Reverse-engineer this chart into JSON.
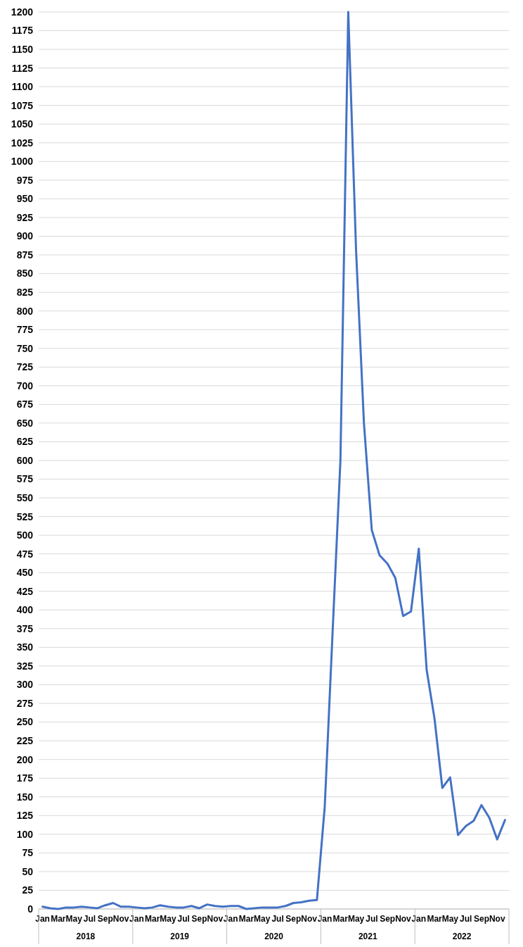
{
  "chart_data": {
    "type": "line",
    "categories": [
      "Jan",
      null,
      "Mar",
      null,
      "May",
      null,
      "Jul",
      null,
      "Sep",
      null,
      "Nov",
      null,
      "Jan",
      null,
      "Mar",
      null,
      "May",
      null,
      "Jul",
      null,
      "Sep",
      null,
      "Nov",
      null,
      "Jan",
      null,
      "Mar",
      null,
      "May",
      null,
      "Jul",
      null,
      "Sep",
      null,
      "Nov",
      null,
      "Jan",
      null,
      "Mar",
      null,
      "May",
      null,
      "Jul",
      null,
      "Sep",
      null,
      "Nov",
      null,
      "Jan",
      null,
      "Mar",
      null,
      "May",
      null,
      "Jul",
      null,
      "Sep",
      null,
      "Nov",
      null
    ],
    "series": [
      {
        "color": "#4472c4",
        "values": [
          3,
          1,
          0,
          2,
          2,
          3,
          2,
          1,
          5,
          8,
          3,
          3,
          2,
          1,
          2,
          5,
          3,
          2,
          2,
          4,
          1,
          6,
          4,
          3,
          4,
          4,
          0,
          1,
          2,
          2,
          2,
          4,
          8,
          9,
          11,
          12,
          137,
          370,
          600,
          1200,
          880,
          650,
          507,
          473,
          462,
          443,
          392,
          398,
          482,
          320,
          255,
          162,
          176,
          99,
          111,
          118,
          139,
          122,
          93,
          119
        ]
      }
    ],
    "ylim": [
      0,
      1200
    ],
    "yticks": [
      0,
      25,
      50,
      75,
      100,
      125,
      150,
      175,
      200,
      225,
      250,
      275,
      300,
      325,
      350,
      375,
      400,
      425,
      450,
      475,
      500,
      525,
      550,
      575,
      600,
      625,
      650,
      675,
      700,
      725,
      750,
      775,
      800,
      825,
      850,
      875,
      900,
      925,
      950,
      975,
      1000,
      1025,
      1050,
      1075,
      1100,
      1125,
      1150,
      1175,
      1200
    ],
    "grid": "y",
    "marker": "none",
    "line_style": "solid",
    "annotations": [
      "2018",
      "2019",
      "2020",
      "2021",
      "2022"
    ]
  }
}
